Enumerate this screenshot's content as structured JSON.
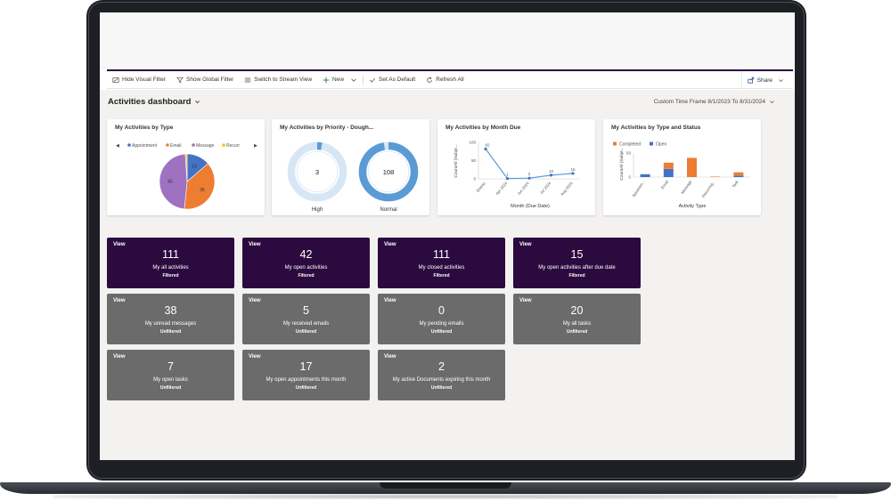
{
  "commandbar": {
    "hide_visual_filter": "Hide Visual Filter",
    "show_global_filter": "Show Global Filter",
    "switch_stream_view": "Switch to Stream View",
    "new": "New",
    "set_default": "Set As Default",
    "refresh_all": "Refresh All",
    "share": "Share"
  },
  "dashboard": {
    "title": "Activities dashboard",
    "time_frame": "Custom Time Frame 8/1/2023 To 8/31/2024"
  },
  "colors": {
    "appointment": "#4472c4",
    "email": "#ed7d31",
    "message": "#9e72c0",
    "recurring": "#ffc000",
    "accent": "#2c0a3f",
    "tile_gray": "#6b6b6b",
    "donut": "#5b9bd5"
  },
  "charts": [
    {
      "title": "My Activities by Type",
      "legend": [
        "Appointment",
        "Email",
        "Message",
        "Recurr"
      ],
      "chart_data": {
        "type": "pie",
        "categories": [
          "Appointment",
          "Email",
          "Message",
          "Recurring"
        ],
        "values": [
          13,
          36,
          45,
          1
        ],
        "labels": [
          "13",
          "36",
          "45",
          ""
        ]
      }
    },
    {
      "title": "My Activities by Priority - Dough...",
      "chart_data": {
        "type": "pie",
        "categories": [
          "High",
          "Normal"
        ],
        "values": [
          3,
          108
        ],
        "labels": [
          "3",
          "108"
        ]
      }
    },
    {
      "title": "My Activities by Month Due",
      "chart_data": {
        "type": "line",
        "categories": [
          "(blank)",
          "Apr 2024",
          "Jun 2024",
          "Jul 2024",
          "Aug 2024"
        ],
        "values": [
          82,
          1,
          2,
          10,
          15
        ],
        "labels": [
          "82",
          "1",
          "2",
          "10",
          "15"
        ],
        "xlabel": "Month (Due Date)",
        "ylabel": "CountAll (Subje...",
        "yticks": [
          "100",
          "50",
          "0"
        ],
        "ylim": [
          0,
          100
        ]
      }
    },
    {
      "title": "My Activities by Type and Status",
      "legend": [
        "Completed",
        "Open"
      ],
      "chart_data": {
        "type": "bar",
        "categories": [
          "Appointm...",
          "Email",
          "Message",
          "Recurring...",
          "Task"
        ],
        "series": [
          {
            "name": "Open",
            "values": [
              6,
              17,
              0,
              0,
              3
            ]
          },
          {
            "name": "Completed",
            "values": [
              0,
              13,
              40,
              1,
              7
            ]
          }
        ],
        "xlabel": "Activity Type",
        "ylabel": "CountAll (Subje...",
        "yticks": [
          "50",
          "0"
        ],
        "ylim": [
          0,
          50
        ]
      }
    }
  ],
  "tiles": [
    {
      "view": "View",
      "count": "111",
      "label": "My all activities",
      "filter": "Filtered"
    },
    {
      "view": "View",
      "count": "42",
      "label": "My open activities",
      "filter": "Filtered"
    },
    {
      "view": "View",
      "count": "111",
      "label": "My closed activities",
      "filter": "Filtered"
    },
    {
      "view": "View",
      "count": "15",
      "label": "My open activities after due date",
      "filter": "Filtered"
    },
    {
      "view": "View",
      "count": "38",
      "label": "My unread messages",
      "filter": "Unfiltered"
    },
    {
      "view": "View",
      "count": "5",
      "label": "My received emails",
      "filter": "Unfiltered"
    },
    {
      "view": "View",
      "count": "0",
      "label": "My pending emails",
      "filter": "Unfiltered"
    },
    {
      "view": "View",
      "count": "20",
      "label": "My all tasks",
      "filter": "Unfiltered"
    },
    {
      "view": "View",
      "count": "7",
      "label": "My open tasks",
      "filter": "Unfiltered"
    },
    {
      "view": "View",
      "count": "17",
      "label": "My open appointments this month",
      "filter": "Unfiltered"
    },
    {
      "view": "View",
      "count": "2",
      "label": "My active Documents expiring this month",
      "filter": "Unfiltered"
    }
  ]
}
